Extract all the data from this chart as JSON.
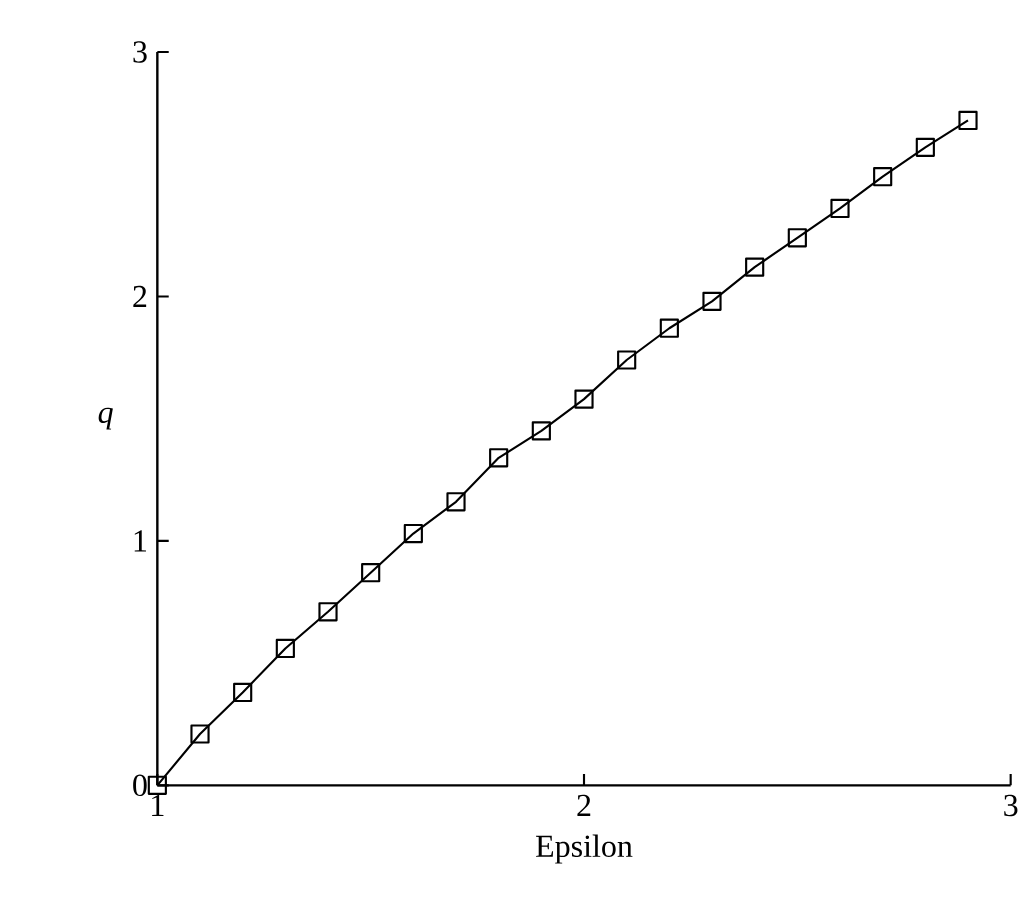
{
  "chart_data": {
    "type": "line",
    "xlabel": "Epsilon",
    "ylabel": "*q*",
    "x": [
      1.0,
      1.1,
      1.2,
      1.3,
      1.4,
      1.5,
      1.6,
      1.7,
      1.8,
      1.9,
      2.0,
      2.1,
      2.2,
      2.3,
      2.4,
      2.5,
      2.6,
      2.7,
      2.8,
      2.9
    ],
    "series": [
      {
        "color": "#000000",
        "values": [
          0,
          0.21,
          0.38,
          0.56,
          0.71,
          0.87,
          1.03,
          1.16,
          1.34,
          1.45,
          1.58,
          1.74,
          1.87,
          1.98,
          2.12,
          2.24,
          2.36,
          2.49,
          2.61,
          2.72
        ]
      }
    ],
    "xlim": [
      1,
      3
    ],
    "ylim": [
      0,
      3
    ],
    "xticks": [
      1,
      2,
      3
    ],
    "yticks": [
      0,
      1,
      2,
      3
    ],
    "marker": "square",
    "line_style": "solid"
  }
}
